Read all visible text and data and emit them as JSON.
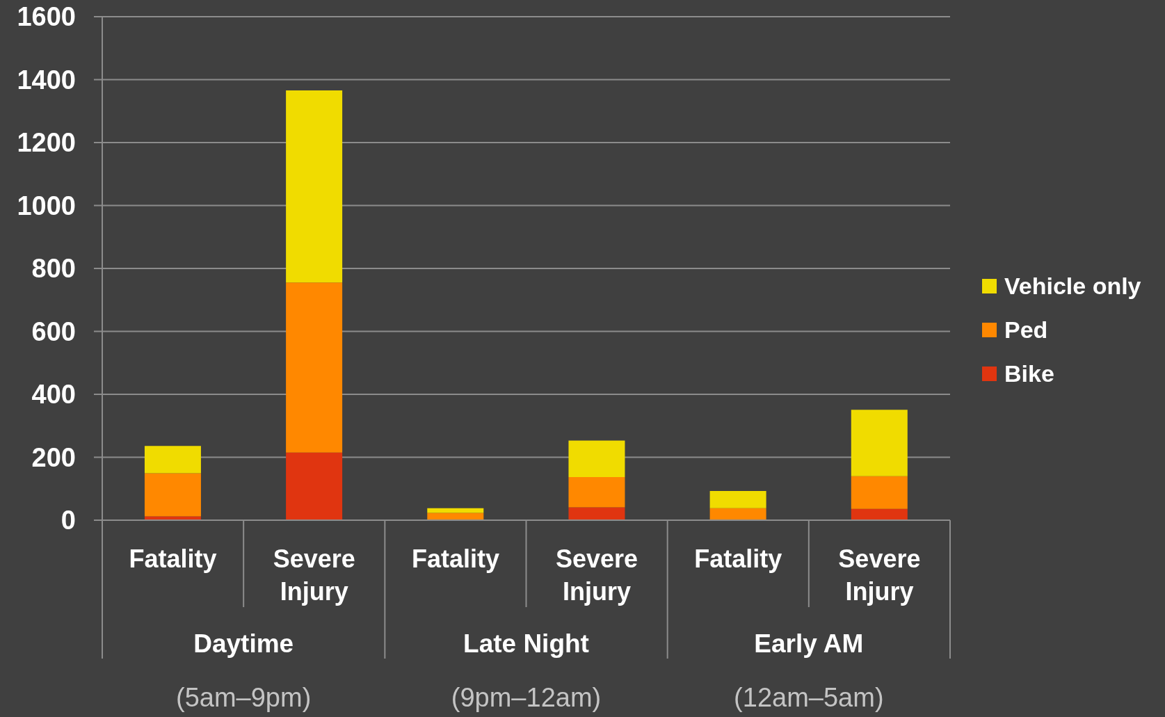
{
  "chart_data": {
    "type": "bar",
    "stacked": true,
    "categories": [
      "Fatality",
      "Severe Injury",
      "Fatality",
      "Severe Injury",
      "Fatality",
      "Severe Injury"
    ],
    "series": [
      {
        "name": "Bike",
        "color": "#e03510",
        "values": [
          12,
          215,
          0,
          41,
          0,
          36
        ]
      },
      {
        "name": "Ped",
        "color": "#ff8800",
        "values": [
          137,
          540,
          23,
          96,
          38,
          104
        ]
      },
      {
        "name": "Vehicle only",
        "color": "#f0dc00",
        "values": [
          87,
          611,
          15,
          116,
          55,
          211
        ]
      }
    ],
    "ylim": [
      0,
      1600
    ],
    "yticks": [
      0,
      200,
      400,
      600,
      800,
      1000,
      1200,
      1400,
      1600
    ],
    "grid": "y",
    "legend": "right",
    "annotations": [
      "Daytime",
      "Late Night",
      "Early AM",
      "(5am–9pm)",
      "(9pm–12am)",
      "(12am–5am)"
    ]
  }
}
